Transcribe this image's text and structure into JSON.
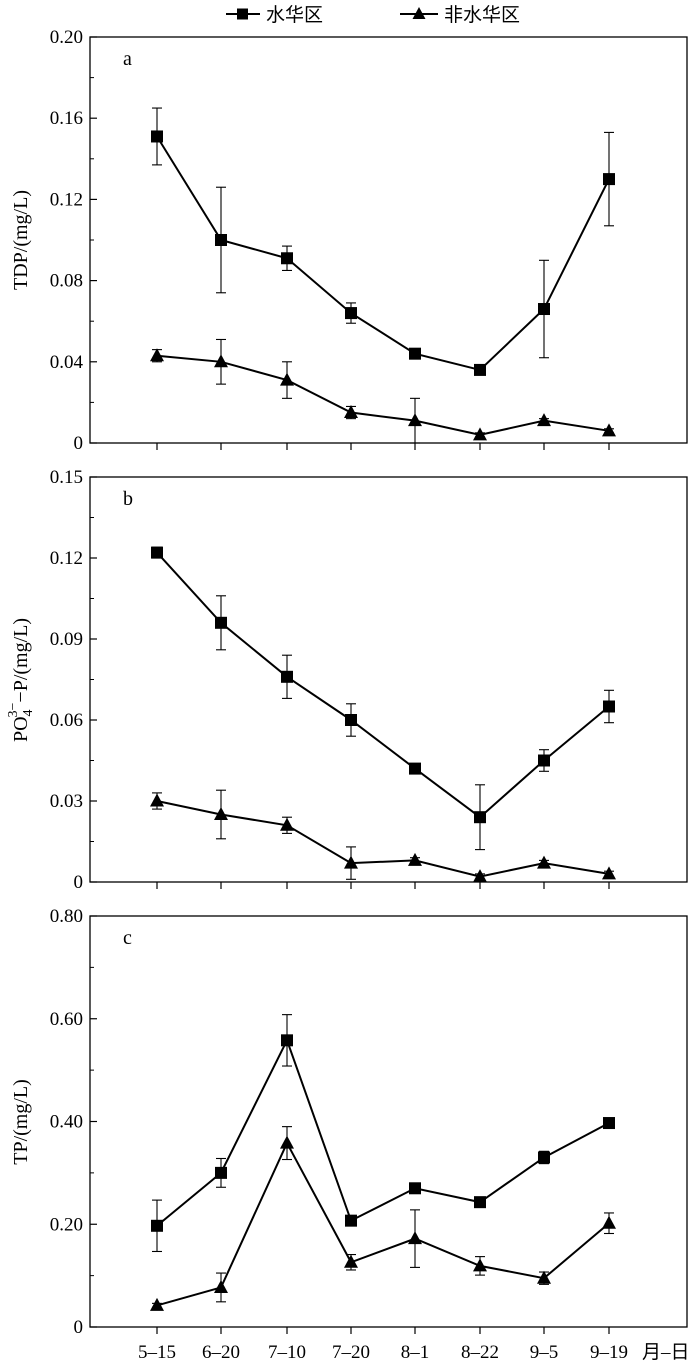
{
  "legend": {
    "position": "top-center",
    "items": [
      {
        "label": "水华区",
        "marker": "square"
      },
      {
        "label": "非水华区",
        "marker": "triangle"
      }
    ]
  },
  "x_unit_label": "月–日",
  "chart_data": [
    {
      "type": "line",
      "panel_label": "a",
      "ylabel": "TDP/(mg/L)",
      "ylim": [
        0,
        0.2
      ],
      "yticks": [
        "0",
        "0.04",
        "0.08",
        "0.12",
        "0.16",
        "0.20"
      ],
      "categories": [
        "5–15",
        "6–20",
        "7–10",
        "7–20",
        "8–1",
        "8–22",
        "9–5",
        "9–19"
      ],
      "series": [
        {
          "name": "水华区",
          "marker": "square",
          "values": [
            0.151,
            0.1,
            0.091,
            0.064,
            0.044,
            0.036,
            0.066,
            0.13
          ],
          "errors": [
            0.014,
            0.026,
            0.006,
            0.005,
            0.001,
            0.001,
            0.024,
            0.023
          ]
        },
        {
          "name": "非水华区",
          "marker": "triangle",
          "values": [
            0.043,
            0.04,
            0.031,
            0.015,
            0.011,
            0.004,
            0.011,
            0.006
          ],
          "errors": [
            0.003,
            0.011,
            0.009,
            0.003,
            0.011,
            0.001,
            0.001,
            0.001
          ]
        }
      ]
    },
    {
      "type": "line",
      "panel_label": "b",
      "ylabel_base": "PO",
      "ylabel_sub": "4",
      "ylabel_sup": "3−",
      "ylabel_rest": "−P/(mg/L)",
      "ylim": [
        0,
        0.15
      ],
      "yticks": [
        "0",
        "0.03",
        "0.06",
        "0.09",
        "0.12",
        "0.15"
      ],
      "categories": [
        "5–15",
        "6–20",
        "7–10",
        "7–20",
        "8–1",
        "8–22",
        "9–5",
        "9–19"
      ],
      "series": [
        {
          "name": "水华区",
          "marker": "square",
          "values": [
            0.122,
            0.096,
            0.076,
            0.06,
            0.042,
            0.024,
            0.045,
            0.065
          ],
          "errors": [
            0.002,
            0.01,
            0.008,
            0.006,
            0.001,
            0.012,
            0.004,
            0.006
          ]
        },
        {
          "name": "非水华区",
          "marker": "triangle",
          "values": [
            0.03,
            0.025,
            0.021,
            0.007,
            0.008,
            0.002,
            0.007,
            0.003
          ],
          "errors": [
            0.003,
            0.009,
            0.003,
            0.006,
            0.001,
            0.001,
            0.001,
            0.001
          ]
        }
      ]
    },
    {
      "type": "line",
      "panel_label": "c",
      "ylabel": "TP/(mg/L)",
      "ylim": [
        0,
        0.8
      ],
      "yticks": [
        "0",
        "0.20",
        "0.40",
        "0.60",
        "0.80"
      ],
      "categories": [
        "5–15",
        "6–20",
        "7–10",
        "7–20",
        "8–1",
        "8–22",
        "9–5",
        "9–19"
      ],
      "series": [
        {
          "name": "水华区",
          "marker": "square",
          "values": [
            0.197,
            0.3,
            0.558,
            0.207,
            0.27,
            0.243,
            0.33,
            0.397
          ],
          "errors": [
            0.05,
            0.028,
            0.05,
            0.004,
            0.004,
            0.008,
            0.012,
            0.004
          ]
        },
        {
          "name": "非水华区",
          "marker": "triangle",
          "values": [
            0.042,
            0.077,
            0.358,
            0.126,
            0.172,
            0.119,
            0.095,
            0.202
          ],
          "errors": [
            0.004,
            0.028,
            0.032,
            0.015,
            0.056,
            0.018,
            0.012,
            0.02
          ]
        }
      ]
    }
  ]
}
